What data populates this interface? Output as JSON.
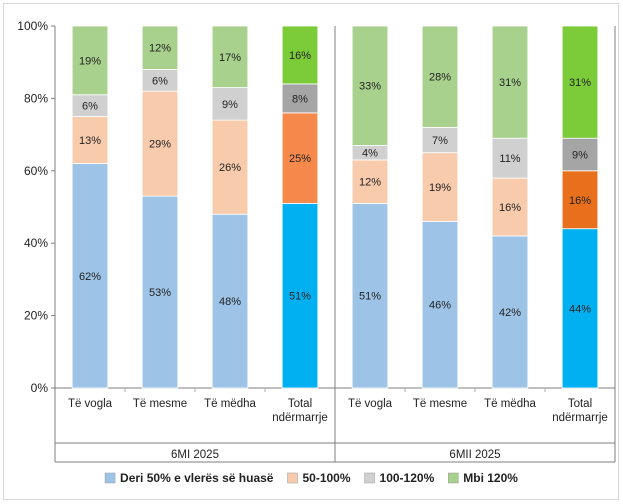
{
  "chart_data": {
    "type": "bar",
    "stacked": true,
    "percent_stacked": true,
    "yticks": [
      "0%",
      "20%",
      "40%",
      "60%",
      "80%",
      "100%"
    ],
    "ylim": [
      0,
      100
    ],
    "grid": false,
    "legend_position": "bottom",
    "groups": [
      {
        "label": "6MI 2025",
        "categories": [
          {
            "label_lines": [
              "Të vogla"
            ],
            "values": [
              62,
              13,
              6,
              19
            ],
            "highlight": false
          },
          {
            "label_lines": [
              "Të mesme"
            ],
            "values": [
              53,
              29,
              6,
              12
            ],
            "highlight": false
          },
          {
            "label_lines": [
              "Të mëdha"
            ],
            "values": [
              48,
              26,
              9,
              17
            ],
            "highlight": false
          },
          {
            "label_lines": [
              "Total",
              "ndërmarrje"
            ],
            "values": [
              51,
              25,
              8,
              16
            ],
            "highlight": true
          }
        ]
      },
      {
        "label": "6MII 2025",
        "categories": [
          {
            "label_lines": [
              "Të vogla"
            ],
            "values": [
              51,
              12,
              4,
              33
            ],
            "highlight": false
          },
          {
            "label_lines": [
              "Të mesme"
            ],
            "values": [
              46,
              19,
              7,
              28
            ],
            "highlight": false
          },
          {
            "label_lines": [
              "Të mëdha"
            ],
            "values": [
              42,
              16,
              11,
              31
            ],
            "highlight": false
          },
          {
            "label_lines": [
              "Total",
              "ndërmarrje"
            ],
            "values": [
              44,
              16,
              9,
              31
            ],
            "highlight": true
          }
        ]
      }
    ],
    "series": [
      {
        "name": "Deri 50% e vlerës së huasë",
        "color": "#9dc3e6",
        "highlight_color": "#00b0f0"
      },
      {
        "name": "50-100%",
        "color": "#f8cbad",
        "highlight_color": "#f4894b"
      },
      {
        "name": "100-120%",
        "color": "#d0d0d0",
        "highlight_color": "#a5a5a5"
      },
      {
        "name": "Mbi 120%",
        "color": "#a9d18e",
        "highlight_color": "#7ccc3a"
      }
    ],
    "highlight_colors_group2": [
      "#00b0f0",
      "#e8701c",
      "#a5a5a5",
      "#7ccc3a"
    ]
  }
}
